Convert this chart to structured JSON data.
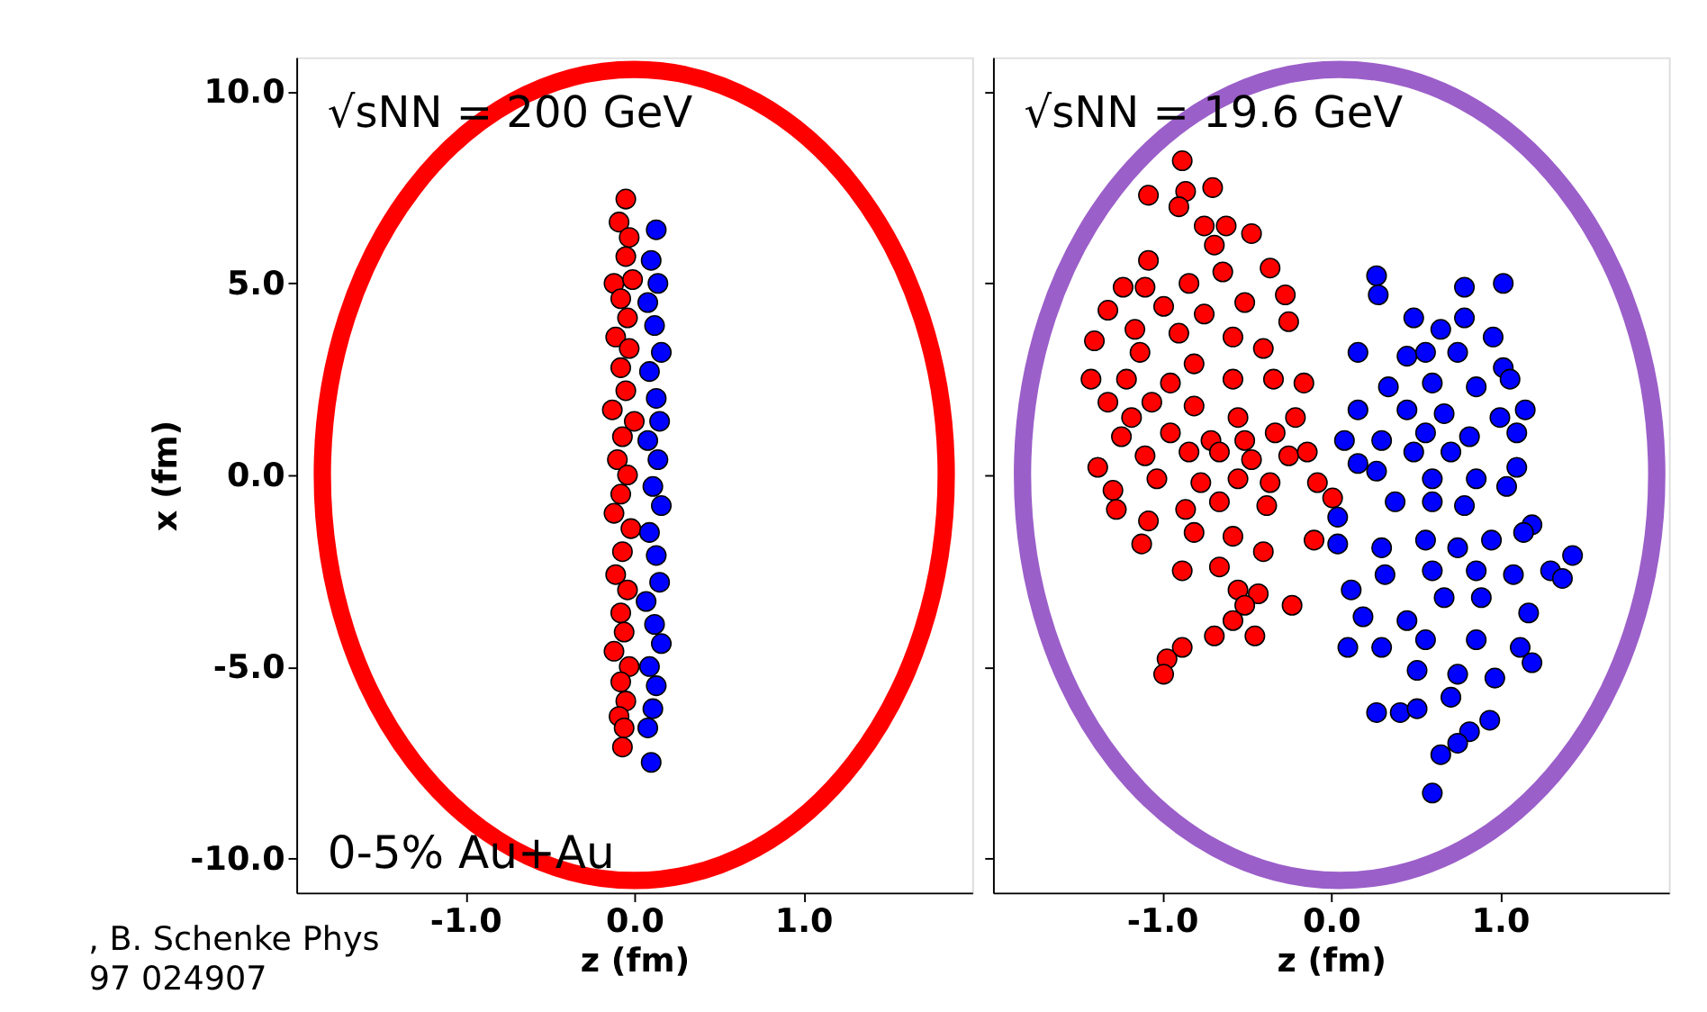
{
  "chart_data": [
    {
      "type": "scatter",
      "xlabel": "z (fm)",
      "ylabel": "x (fm)",
      "xlim": [
        -2.0,
        2.0
      ],
      "ylim": [
        -10.9,
        10.9
      ],
      "xticks": [
        {
          "value": -1,
          "label": "-1.0"
        },
        {
          "value": 0,
          "label": "0.0"
        },
        {
          "value": 1,
          "label": "1.0"
        }
      ],
      "yticks": [
        {
          "value": -10,
          "label": "-10.0"
        },
        {
          "value": -5,
          "label": "-5.0"
        },
        {
          "value": 0,
          "label": "0.0"
        },
        {
          "value": 5,
          "label": "5.0"
        },
        {
          "value": 10,
          "label": "10.0"
        }
      ],
      "marker": "circle",
      "grid": false,
      "legend": false,
      "annotations": [
        "√sNN = 200 GeV",
        "0-5% Au+Au",
        ", B. Schenke Phys",
        "97 024907"
      ],
      "series": [
        {
          "color": "#ff0000",
          "x": [
            -0.05,
            -0.09,
            -0.03,
            -0.05,
            -0.12,
            -0.01,
            -0.08,
            -0.04,
            -0.11,
            -0.03,
            -0.08,
            -0.05,
            -0.13,
            0.0,
            -0.07,
            -0.1,
            -0.04,
            -0.08,
            -0.12,
            -0.02,
            -0.07,
            -0.11,
            -0.04,
            -0.08,
            -0.06,
            -0.12,
            -0.03,
            -0.08,
            -0.05,
            -0.09,
            -0.06,
            -0.07
          ],
          "values": [
            7.2,
            6.6,
            6.2,
            5.7,
            5.0,
            5.1,
            4.6,
            4.1,
            3.6,
            3.3,
            2.8,
            2.2,
            1.7,
            1.4,
            1.0,
            0.4,
            0.0,
            -0.5,
            -1.0,
            -1.4,
            -2.0,
            -2.6,
            -3.0,
            -3.6,
            -4.1,
            -4.6,
            -5.0,
            -5.4,
            -5.9,
            -6.3,
            -6.6,
            -7.1
          ]
        },
        {
          "color": "#0000ff",
          "x": [
            0.13,
            0.1,
            0.14,
            0.08,
            0.12,
            0.16,
            0.09,
            0.13,
            0.15,
            0.08,
            0.14,
            0.11,
            0.16,
            0.09,
            0.13,
            0.15,
            0.07,
            0.12,
            0.16,
            0.09,
            0.13,
            0.11,
            0.08,
            0.1
          ],
          "values": [
            6.4,
            5.6,
            5.0,
            4.5,
            3.9,
            3.2,
            2.7,
            2.0,
            1.4,
            0.9,
            0.4,
            -0.3,
            -0.8,
            -1.5,
            -2.1,
            -2.8,
            -3.3,
            -3.9,
            -4.4,
            -5.0,
            -5.5,
            -6.1,
            -6.6,
            -7.5
          ]
        }
      ]
    },
    {
      "type": "scatter",
      "xlabel": "z (fm)",
      "xlim": [
        -2.0,
        2.0
      ],
      "ylim": [
        -10.9,
        10.9
      ],
      "tick_labels": "x",
      "xticks": [
        {
          "value": -1,
          "label": "-1.0"
        },
        {
          "value": 0,
          "label": "0.0"
        },
        {
          "value": 1,
          "label": "1.0"
        }
      ],
      "yticks": [
        {
          "value": -10,
          "label": null
        },
        {
          "value": -5,
          "label": null
        },
        {
          "value": 0,
          "label": null
        },
        {
          "value": 5,
          "label": null
        },
        {
          "value": 10,
          "label": null
        }
      ],
      "marker": "circle",
      "grid": false,
      "legend": false,
      "annotations": [
        "√sNN = 19.6 GeV"
      ],
      "series": [
        {
          "color": "#ff0000",
          "x": [
            -0.88,
            -1.08,
            -0.86,
            -0.7,
            -0.9,
            -0.75,
            -0.62,
            -0.47,
            -0.69,
            -1.08,
            -0.36,
            -0.64,
            -1.23,
            -1.1,
            -0.84,
            -0.27,
            -1.32,
            -0.99,
            -0.75,
            -0.51,
            -0.25,
            -1.4,
            -1.16,
            -0.9,
            -0.58,
            -0.4,
            -1.13,
            -0.81,
            -1.42,
            -1.21,
            -0.95,
            -0.58,
            -0.34,
            -0.16,
            -1.32,
            -1.06,
            -0.81,
            -0.55,
            -0.21,
            -1.18,
            -0.95,
            -1.24,
            -0.71,
            -0.51,
            -0.33,
            -1.38,
            -1.1,
            -0.84,
            -0.66,
            -0.47,
            -0.25,
            -0.14,
            -1.29,
            -1.03,
            -0.77,
            -0.55,
            -0.36,
            -0.08,
            0.01,
            -1.27,
            -1.08,
            -0.86,
            -0.66,
            -0.38,
            -1.12,
            -0.81,
            -0.58,
            -0.4,
            -0.1,
            -0.88,
            -0.66,
            -0.55,
            -0.43,
            -0.23,
            -0.51,
            -0.58,
            -0.69,
            -0.45,
            -0.88,
            -0.97,
            -0.99
          ],
          "values": [
            8.2,
            7.3,
            7.4,
            7.5,
            7.0,
            6.5,
            6.5,
            6.3,
            6.0,
            5.6,
            5.4,
            5.3,
            4.9,
            4.9,
            5.0,
            4.7,
            4.3,
            4.4,
            4.2,
            4.5,
            4.0,
            3.5,
            3.8,
            3.7,
            3.6,
            3.3,
            3.2,
            2.9,
            2.5,
            2.5,
            2.4,
            2.5,
            2.5,
            2.4,
            1.9,
            1.9,
            1.8,
            1.5,
            1.5,
            1.5,
            1.1,
            1.0,
            0.9,
            0.9,
            1.1,
            0.2,
            0.5,
            0.6,
            0.6,
            0.4,
            0.5,
            0.6,
            -0.4,
            -0.1,
            -0.2,
            -0.1,
            -0.2,
            -0.2,
            -0.6,
            -0.9,
            -1.2,
            -0.9,
            -0.7,
            -0.8,
            -1.8,
            -1.5,
            -1.6,
            -2.0,
            -1.7,
            -2.5,
            -2.4,
            -3.0,
            -3.1,
            -3.4,
            -3.4,
            -3.8,
            -4.2,
            -4.2,
            -4.5,
            -4.8,
            -5.2
          ]
        },
        {
          "color": "#0000ff",
          "x": [
            0.27,
            0.28,
            0.79,
            1.02,
            0.49,
            0.65,
            0.79,
            0.96,
            0.16,
            0.45,
            0.56,
            0.75,
            1.02,
            0.34,
            0.6,
            0.86,
            1.06,
            0.16,
            0.45,
            0.67,
            1.0,
            1.15,
            0.08,
            0.3,
            0.56,
            0.82,
            1.1,
            0.16,
            0.49,
            0.71,
            1.1,
            0.27,
            0.6,
            0.86,
            1.04,
            0.04,
            0.38,
            0.6,
            0.79,
            1.19,
            0.04,
            0.3,
            0.56,
            0.75,
            0.95,
            1.14,
            1.43,
            0.12,
            0.32,
            0.6,
            0.86,
            1.08,
            1.3,
            1.37,
            0.19,
            0.45,
            0.67,
            0.89,
            1.17,
            0.1,
            0.3,
            0.56,
            0.86,
            1.12,
            1.19,
            0.51,
            0.75,
            0.97,
            0.27,
            0.41,
            0.51,
            0.71,
            0.94,
            0.82,
            0.75,
            0.65,
            0.6
          ],
          "values": [
            5.2,
            4.7,
            4.9,
            5.0,
            4.1,
            3.8,
            4.1,
            3.6,
            3.2,
            3.1,
            3.2,
            3.2,
            2.8,
            2.3,
            2.4,
            2.3,
            2.5,
            1.7,
            1.7,
            1.6,
            1.5,
            1.7,
            0.9,
            0.9,
            1.1,
            1.0,
            1.1,
            0.3,
            0.6,
            0.6,
            0.2,
            0.1,
            -0.1,
            -0.1,
            -0.3,
            -1.1,
            -0.7,
            -0.7,
            -0.8,
            -1.3,
            -1.8,
            -1.9,
            -1.7,
            -1.9,
            -1.7,
            -1.5,
            -2.1,
            -3.0,
            -2.6,
            -2.5,
            -2.5,
            -2.6,
            -2.5,
            -2.7,
            -3.7,
            -3.8,
            -3.2,
            -3.2,
            -3.6,
            -4.5,
            -4.5,
            -4.3,
            -4.3,
            -4.5,
            -4.9,
            -5.1,
            -5.2,
            -5.3,
            -6.2,
            -6.2,
            -6.1,
            -5.8,
            -6.4,
            -6.7,
            -7.0,
            -7.3,
            -8.3
          ]
        }
      ]
    }
  ]
}
